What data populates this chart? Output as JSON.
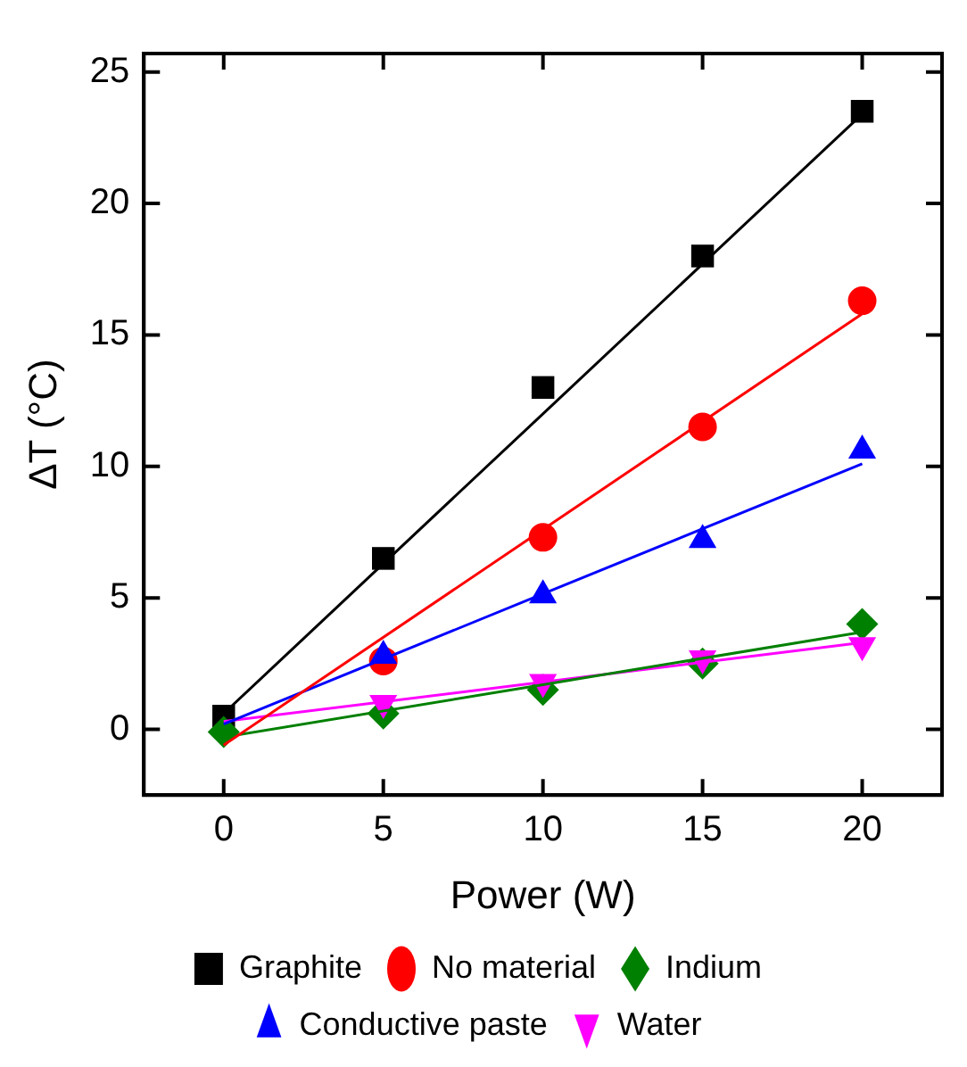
{
  "chart_data": {
    "type": "scatter",
    "xlabel": "Power (W)",
    "ylabel": "ΔT (°C)",
    "xlim": [
      -2.5,
      22.5
    ],
    "xticks": [
      0,
      5,
      10,
      15,
      20
    ],
    "ylim": [
      -2.5,
      25.7
    ],
    "yticks": [
      0,
      5,
      10,
      15,
      20,
      25
    ],
    "grid": false,
    "legend": "bottom",
    "x": [
      0,
      5,
      10,
      15,
      20
    ],
    "series": [
      {
        "name": "Graphite",
        "color": "#000000",
        "marker": "square",
        "values": [
          0.5,
          6.5,
          13.0,
          18.0,
          23.5
        ]
      },
      {
        "name": "No material",
        "color": "#ff0000",
        "marker": "circle",
        "values": [
          null,
          2.6,
          7.3,
          11.5,
          16.3
        ]
      },
      {
        "name": "Indium",
        "color": "#008000",
        "marker": "diamond",
        "values": [
          -0.1,
          0.6,
          1.5,
          2.5,
          4.0
        ]
      },
      {
        "name": "Conductive paste",
        "color": "#0000ff",
        "marker": "triangle",
        "values": [
          null,
          2.8,
          5.1,
          7.2,
          10.6
        ]
      },
      {
        "name": "Water",
        "color": "#ff00ff",
        "marker": "triangle-down",
        "values": [
          null,
          1.0,
          1.8,
          2.7,
          3.2
        ]
      },
      {
        "type": "line",
        "color": "#000000",
        "x": [
          0,
          10,
          20
        ],
        "values": [
          0.6,
          12.0,
          23.4
        ]
      },
      {
        "type": "line",
        "color": "#ff0000",
        "x": [
          0,
          10,
          20
        ],
        "values": [
          -0.6,
          7.6,
          15.8
        ]
      },
      {
        "type": "line",
        "color": "#008000",
        "x": [
          0,
          10,
          20
        ],
        "values": [
          -0.3,
          1.7,
          3.7
        ]
      },
      {
        "type": "line",
        "color": "#0000ff",
        "x": [
          0,
          10,
          20
        ],
        "values": [
          0.2,
          5.15,
          10.1
        ]
      },
      {
        "type": "line",
        "color": "#ff00ff",
        "x": [
          0,
          10,
          20
        ],
        "values": [
          0.3,
          1.8,
          3.3
        ]
      }
    ]
  }
}
